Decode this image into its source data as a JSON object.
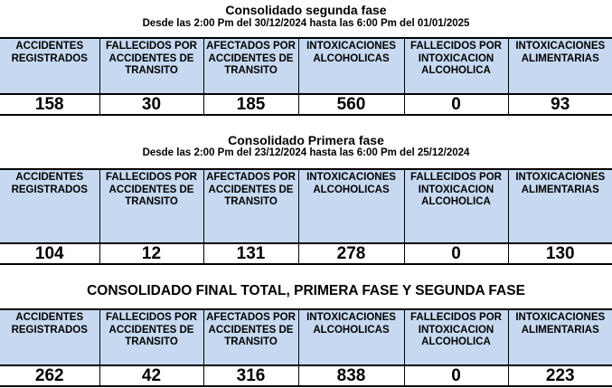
{
  "sections": [
    {
      "title": "Consolidado segunda fase",
      "subtitle": "Desde las 2:00 Pm del 30/12/2024 hasta las 6:00 Pm del 01/01/2025",
      "headers": [
        "ACCIDENTES REGISTRADOS",
        "FALLECIDOS POR ACCIDENTES DE TRANSITO",
        "AFECTADOS POR ACCIDENTES DE TRANSITO",
        "INTOXICACIONES ALCOHOLICAS",
        "FALLECIDOS POR INTOXICACION ALCOHOLICA",
        "INTOXICACIONES ALIMENTARIAS"
      ],
      "values": [
        "158",
        "30",
        "185",
        "560",
        "0",
        "93"
      ]
    },
    {
      "title": "Consolidado Primera fase",
      "subtitle": "Desde las 2:00 Pm del 23/12/2024 hasta las 6:00 Pm del 25/12/2024",
      "headers": [
        "ACCIDENTES REGISTRADOS",
        "FALLECIDOS POR ACCIDENTES DE TRANSITO",
        "AFECTADOS POR ACCIDENTES DE TRANSITO",
        "INTOXICACIONES ALCOHOLICAS",
        "FALLECIDOS POR INTOXICACION ALCOHOLICA",
        "INTOXICACIONES ALIMENTARIAS"
      ],
      "values": [
        "104",
        "12",
        "131",
        "278",
        "0",
        "130"
      ]
    },
    {
      "title": "CONSOLIDADO FINAL TOTAL, PRIMERA FASE Y SEGUNDA FASE",
      "headers": [
        "ACCIDENTES REGISTRADOS",
        "FALLECIDOS POR ACCIDENTES DE TRANSITO",
        "AFECTADOS POR ACCIDENTES DE TRANSITO",
        "INTOXICACIONES ALCOHOLICAS",
        "FALLECIDOS POR INTOXICACION ALCOHOLICA",
        "INTOXICACIONES ALIMENTARIAS"
      ],
      "values": [
        "262",
        "42",
        "316",
        "838",
        "0",
        "223"
      ]
    }
  ],
  "colors": {
    "header_bg": "#c6d9f0"
  }
}
